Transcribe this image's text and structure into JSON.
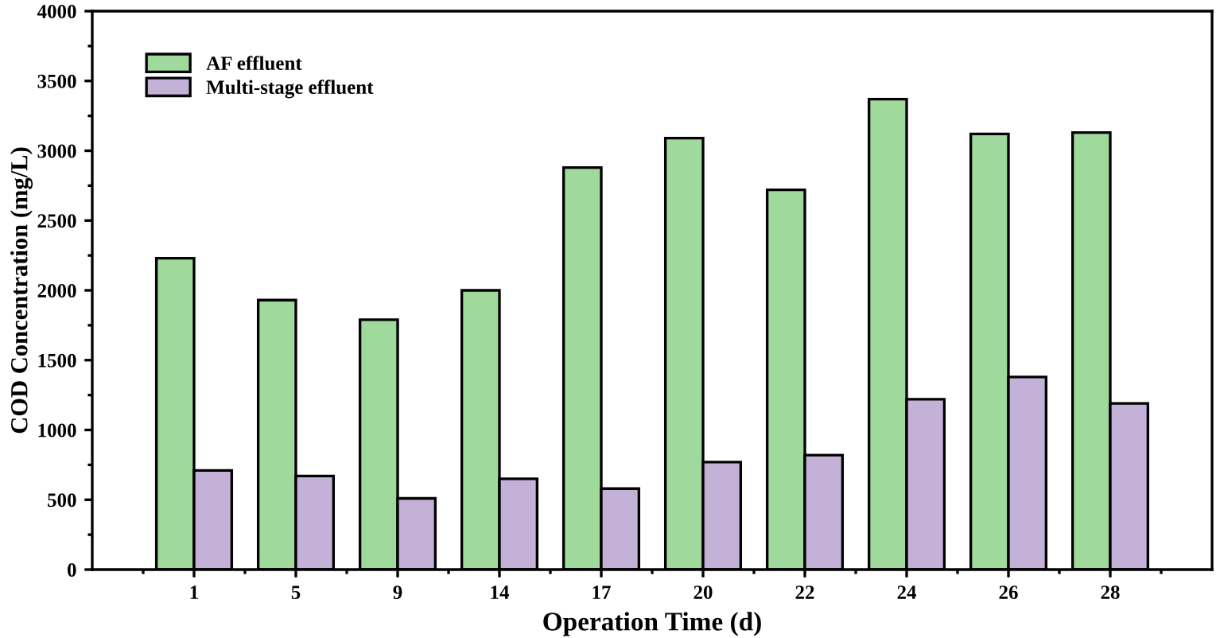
{
  "chart_data": {
    "type": "bar",
    "xlabel": "Operation Time (d)",
    "ylabel": "COD Concentration (mg/L)",
    "categories": [
      "1",
      "5",
      "9",
      "14",
      "17",
      "20",
      "22",
      "24",
      "26",
      "28"
    ],
    "series": [
      {
        "name": "AF effluent",
        "color": "#9fd99b",
        "values": [
          2230,
          1930,
          1790,
          2000,
          2880,
          3090,
          2720,
          3370,
          3120,
          3130
        ]
      },
      {
        "name": "Multi-stage effluent",
        "color": "#c3b1d8",
        "values": [
          710,
          670,
          510,
          650,
          580,
          770,
          820,
          1220,
          1380,
          1190
        ]
      }
    ],
    "ylim": [
      0,
      4000
    ],
    "yticks": [
      0,
      500,
      1000,
      1500,
      2000,
      2500,
      3000,
      3500,
      4000
    ],
    "grid": false,
    "legend": "top left"
  }
}
